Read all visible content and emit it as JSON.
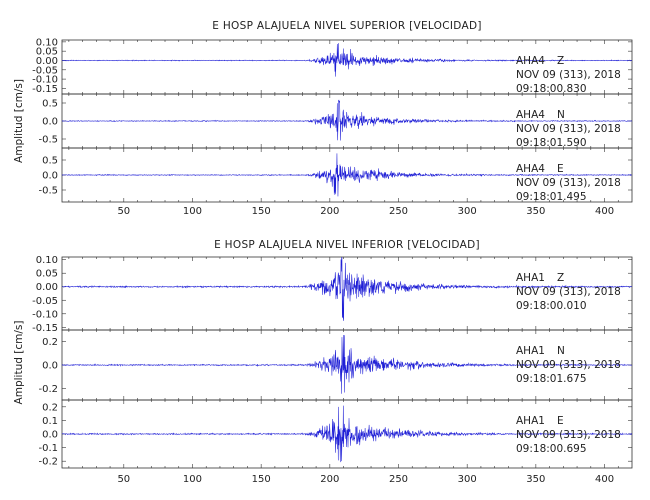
{
  "chart_data": [
    {
      "type": "line",
      "title": "E HOSP ALAJUELA NIVEL SUPERIOR [VELOCIDAD]",
      "ylabel": "Amplitud [cm/s]",
      "xlabel": "",
      "xlim": [
        5,
        420
      ],
      "x_ticks": [
        50,
        100,
        150,
        200,
        250,
        300,
        350,
        400
      ],
      "grid": false,
      "series_color": "#1f1fd6",
      "traces": [
        {
          "station": "AHA4",
          "component": "Z",
          "date": "NOV 09 (313), 2018",
          "time": "09:18:00.830",
          "ylim": [
            -0.18,
            0.11
          ],
          "y_ticks": [
            "0.10",
            "0.05",
            "0.00",
            "-0.05",
            "-0.10",
            "-0.15"
          ],
          "onset": 180,
          "peak_time": 206,
          "peak_amplitude": 0.1,
          "coda_end": 300
        },
        {
          "station": "AHA4",
          "component": "N",
          "date": "NOV 09 (313), 2018",
          "time": "09:18:01.590",
          "ylim": [
            -0.75,
            0.75
          ],
          "y_ticks": [
            "0.5",
            "0.0",
            "-0.5"
          ],
          "onset": 182,
          "peak_time": 206,
          "peak_amplitude": 0.6,
          "coda_end": 290
        },
        {
          "station": "AHA4",
          "component": "E",
          "date": "NOV 09 (313), 2018",
          "time": "09:18:01.495",
          "ylim": [
            -0.9,
            0.9
          ],
          "y_ticks": [
            "0.5",
            "0.0",
            "-0.5"
          ],
          "onset": 182,
          "peak_time": 205,
          "peak_amplitude": 0.75,
          "coda_end": 295
        }
      ]
    },
    {
      "type": "line",
      "title": "E HOSP ALAJUELA NIVEL INFERIOR [VELOCIDAD]",
      "ylabel": "Amplitud [cm/s]",
      "xlabel": "",
      "xlim": [
        5,
        420
      ],
      "x_ticks": [
        50,
        100,
        150,
        200,
        250,
        300,
        350,
        400
      ],
      "grid": false,
      "series_color": "#1f1fd6",
      "traces": [
        {
          "station": "AHA1",
          "component": "Z",
          "date": "NOV 09 (313), 2018",
          "time": "09:18:00.010",
          "ylim": [
            -0.16,
            0.11
          ],
          "y_ticks": [
            "0.10",
            "0.05",
            "0.00",
            "-0.05",
            "-0.10",
            "-0.15"
          ],
          "onset": 178,
          "peak_time": 210,
          "peak_amplitude": 0.13,
          "coda_end": 300
        },
        {
          "station": "AHA1",
          "component": "N",
          "date": "NOV 09 (313), 2018",
          "time": "09:18:01.675",
          "ylim": [
            -0.3,
            0.3
          ],
          "y_ticks": [
            "0.2",
            "0.0",
            "-0.2"
          ],
          "onset": 180,
          "peak_time": 210,
          "peak_amplitude": 0.27,
          "coda_end": 310
        },
        {
          "station": "AHA1",
          "component": "E",
          "date": "NOV 09 (313), 2018",
          "time": "09:18:00.695",
          "ylim": [
            -0.25,
            0.25
          ],
          "y_ticks": [
            "0.2",
            "0.1",
            "0.0",
            "-0.1",
            "-0.2"
          ],
          "onset": 180,
          "peak_time": 208,
          "peak_amplitude": 0.23,
          "coda_end": 300
        }
      ]
    }
  ]
}
